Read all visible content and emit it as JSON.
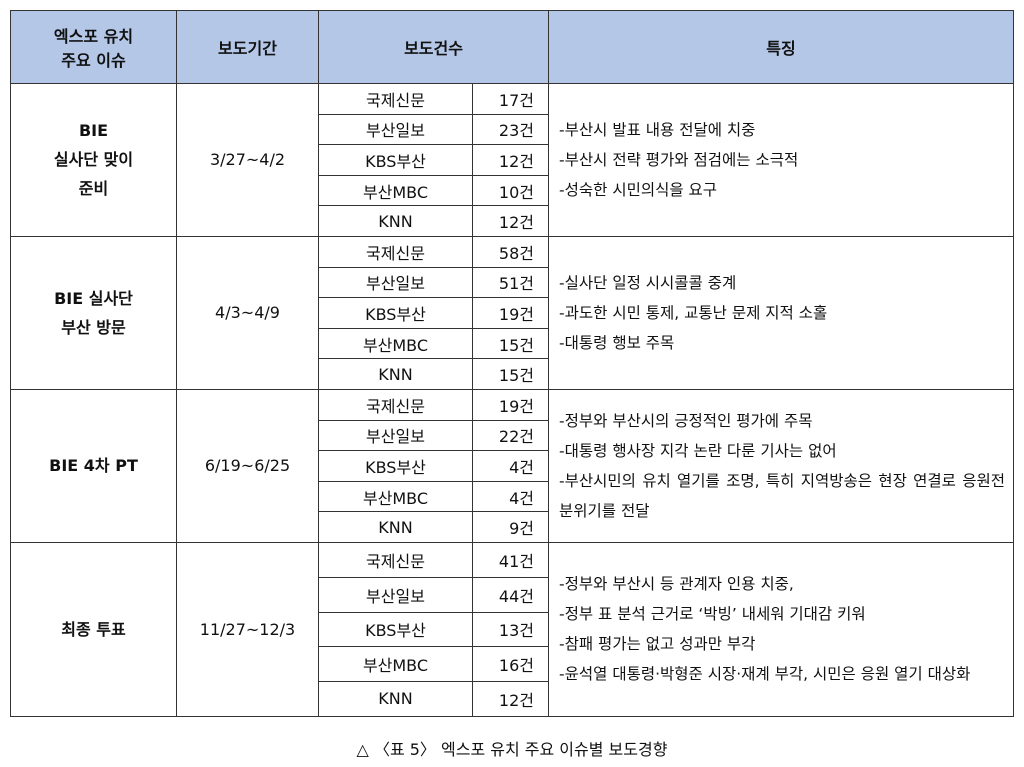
{
  "table": {
    "header": {
      "issue": [
        "엑스포 유치",
        "주요 이슈"
      ],
      "period": "보도기간",
      "count": "보도건수",
      "features": "특징"
    },
    "groups": [
      {
        "issue": [
          "BIE",
          "실사단 맞이",
          "준비"
        ],
        "period": "3/27~4/2",
        "rows": [
          [
            "국제신문",
            "17건"
          ],
          [
            "부산일보",
            "23건"
          ],
          [
            "KBS부산",
            "12건"
          ],
          [
            "부산MBC",
            "10건"
          ],
          [
            "KNN",
            "12건"
          ]
        ],
        "features": [
          "-부산시 발표 내용 전달에 치중",
          "-부산시 전략 평가와 점검에는 소극적",
          "-성숙한 시민의식을 요구"
        ]
      },
      {
        "issue": [
          "BIE 실사단",
          "부산 방문"
        ],
        "period": "4/3~4/9",
        "rows": [
          [
            "국제신문",
            "58건"
          ],
          [
            "부산일보",
            "51건"
          ],
          [
            "KBS부산",
            "19건"
          ],
          [
            "부산MBC",
            "15건"
          ],
          [
            "KNN",
            "15건"
          ]
        ],
        "features": [
          "-실사단 일정 시시콜콜 중계",
          "-과도한 시민 통제, 교통난 문제 지적 소홀",
          "-대통령 행보 주목"
        ]
      },
      {
        "issue": [
          "BIE 4차 PT"
        ],
        "period": "6/19~6/25",
        "rows": [
          [
            "국제신문",
            "19건"
          ],
          [
            "부산일보",
            "22건"
          ],
          [
            "KBS부산",
            "4건"
          ],
          [
            "부산MBC",
            "4건"
          ],
          [
            "KNN",
            "9건"
          ]
        ],
        "features": [
          "-정부와 부산시의 긍정적인 평가에 주목",
          "-대통령 행사장 지각 논란 다룬 기사는 없어",
          "-부산시민의 유치 열기를 조명, 특히 지역방송은 현장 연결로 응원전 분위기를 전달"
        ]
      },
      {
        "issue": [
          "최종 투표"
        ],
        "period": "11/27~12/3",
        "rows": [
          [
            "국제신문",
            "41건"
          ],
          [
            "부산일보",
            "44건"
          ],
          [
            "KBS부산",
            "13건"
          ],
          [
            "부산MBC",
            "16건"
          ],
          [
            "KNN",
            "12건"
          ]
        ],
        "features": [
          "-정부와 부산시 등 관계자 인용 치중,",
          "-정부 표 분석 근거로 ‘박빙’ 내세워 기대감 키워",
          "-참패 평가는 없고 성과만 부각",
          "-윤석열 대통령·박형준 시장·재계 부각, 시민은 응원 열기 대상화"
        ]
      }
    ],
    "caption": "△ 〈표 5〉 엑스포 유치 주요 이슈별 보도경향"
  }
}
